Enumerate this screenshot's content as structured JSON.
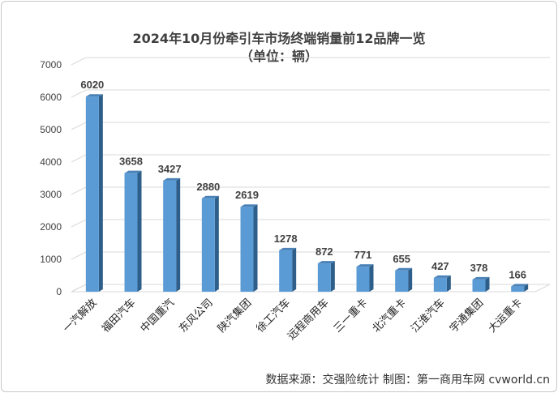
{
  "chart_data": {
    "type": "bar",
    "title": "2024年10月份牵引车市场终端销量前12品牌一览",
    "subtitle": "（单位：辆）",
    "categories": [
      "一汽解放",
      "福田汽车",
      "中国重汽",
      "东风公司",
      "陕汽集团",
      "徐工汽车",
      "远程商用车",
      "三一重卡",
      "北汽重卡",
      "江淮汽车",
      "宇通集团",
      "大运重卡"
    ],
    "values": [
      6020,
      3658,
      3427,
      2880,
      2619,
      1278,
      872,
      771,
      655,
      427,
      378,
      166
    ],
    "ylim": [
      0,
      7000
    ],
    "yticks": [
      0,
      1000,
      2000,
      3000,
      4000,
      5000,
      6000,
      7000
    ],
    "grid": true,
    "legend": "none",
    "colors": {
      "bar_front": "#5b9bd5",
      "bar_side": "#2e5f8a",
      "bar_top": "#4a82b8",
      "grid": "#d9d9d9"
    }
  },
  "source_note": "数据来源：交强险统计    制图：第一商用车网 cvworld.cn"
}
